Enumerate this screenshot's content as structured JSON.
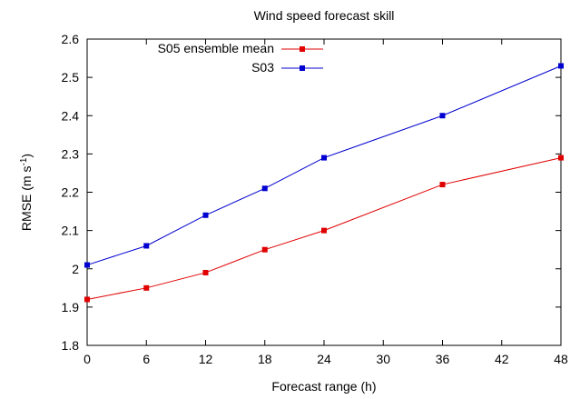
{
  "chart_data": {
    "type": "line",
    "title": "Wind speed forecast skill",
    "xlabel": "Forecast range (h)",
    "ylabel_main": "RMSE (m s",
    "ylabel_sup": "-1",
    "ylabel_close": ")",
    "xlim": [
      0,
      48
    ],
    "ylim": [
      1.8,
      2.6
    ],
    "xticks": [
      0,
      6,
      12,
      18,
      24,
      30,
      36,
      42,
      48
    ],
    "yticks": [
      1.8,
      1.9,
      2.0,
      2.1,
      2.2,
      2.3,
      2.4,
      2.5,
      2.6
    ],
    "xtick_labels": [
      "0",
      "6",
      "12",
      "18",
      "24",
      "30",
      "36",
      "42",
      "48"
    ],
    "ytick_labels": [
      "1.8",
      "1.9",
      "2",
      "2.1",
      "2.2",
      "2.3",
      "2.4",
      "2.5",
      "2.6"
    ],
    "grid": false,
    "legend_position": "top-left",
    "series": [
      {
        "name": "S05 ensemble mean",
        "color": "#e00000",
        "x": [
          0,
          6,
          12,
          18,
          24,
          36,
          48
        ],
        "y": [
          1.92,
          1.95,
          1.99,
          2.05,
          2.1,
          2.22,
          2.29
        ]
      },
      {
        "name": "S03",
        "color": "#0000d0",
        "x": [
          0,
          6,
          12,
          18,
          24,
          36,
          48
        ],
        "y": [
          2.01,
          2.06,
          2.14,
          2.21,
          2.29,
          2.4,
          2.53
        ]
      }
    ]
  }
}
